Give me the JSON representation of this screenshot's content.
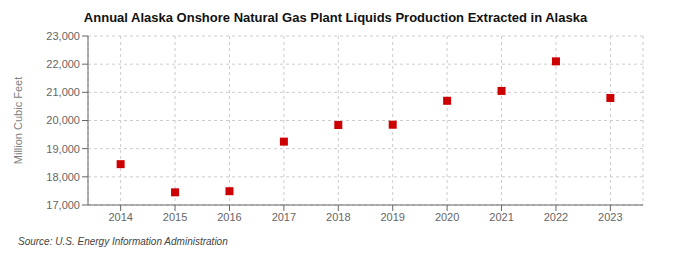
{
  "chart_data": {
    "type": "scatter",
    "title": "Annual Alaska Onshore Natural Gas Plant Liquids Production Extracted in Alaska",
    "ylabel": "Million Cubic Feet",
    "annotation": "Source: U.S. Energy Information Administration",
    "x": [
      2014,
      2015,
      2016,
      2017,
      2018,
      2019,
      2020,
      2021,
      2022,
      2023
    ],
    "values": [
      18450,
      17450,
      17490,
      19250,
      19840,
      19850,
      20700,
      21050,
      22100,
      20800
    ],
    "xlim": [
      2013.4,
      2023.6
    ],
    "xticks": [
      2014,
      2015,
      2016,
      2017,
      2018,
      2019,
      2020,
      2021,
      2022,
      2023
    ],
    "ylim": [
      17000,
      23000
    ],
    "yticks": [
      {
        "value": 17000,
        "label": "17,000"
      },
      {
        "value": 18000,
        "label": "18,000"
      },
      {
        "value": 19000,
        "label": "19,000"
      },
      {
        "value": 20000,
        "label": "20,000"
      },
      {
        "value": 21000,
        "label": "21,000"
      },
      {
        "value": 22000,
        "label": "22,000"
      },
      {
        "value": 23000,
        "label": "23,000"
      }
    ],
    "color": "#cc0000",
    "marker": "square",
    "grid": true
  }
}
